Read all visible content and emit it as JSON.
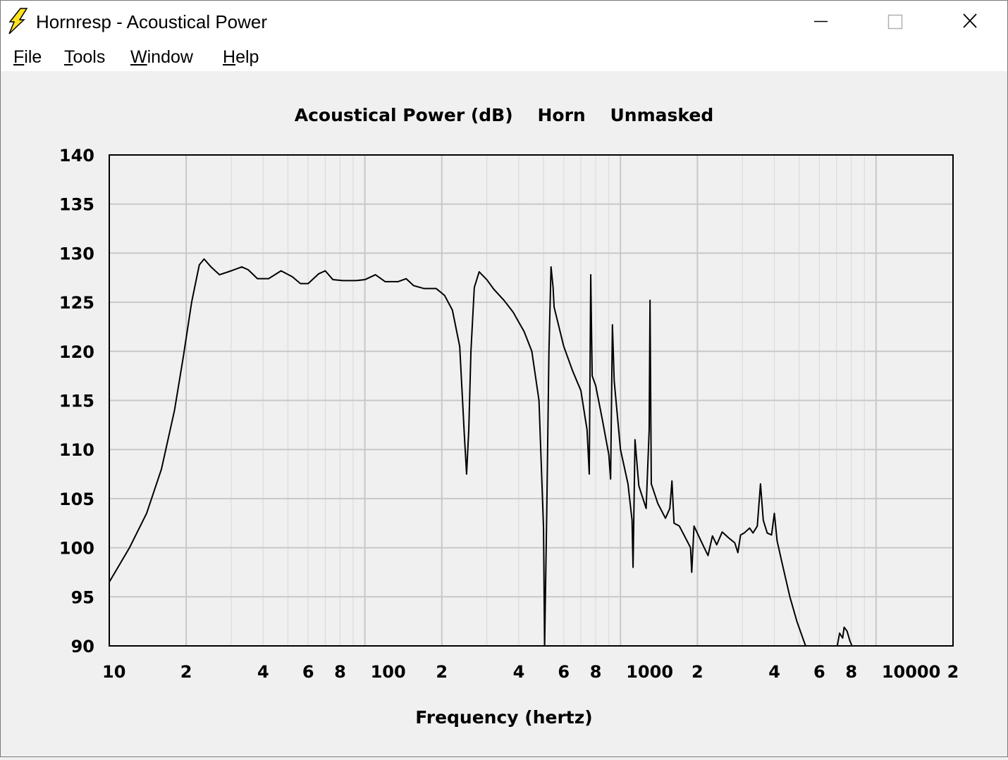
{
  "window": {
    "title": "Hornresp - Acoustical Power",
    "icon": "lightning-bolt-icon",
    "controls": [
      "minimize-icon",
      "maximize-icon",
      "close-icon"
    ]
  },
  "menu": [
    {
      "label": "File",
      "mnemonic": "F",
      "rest": "ile"
    },
    {
      "label": "Tools",
      "mnemonic": "T",
      "rest": "ools"
    },
    {
      "label": "Window",
      "mnemonic": "W",
      "rest": "indow"
    },
    {
      "label": "Help",
      "mnemonic": "H",
      "rest": "elp"
    }
  ],
  "chart_data": {
    "type": "line",
    "title": "Acoustical Power (dB)    Horn    Unmasked",
    "xlabel": "Frequency (hertz)",
    "ylabel": "",
    "xscale": "log",
    "xlim": [
      10,
      20000
    ],
    "ylim": [
      90,
      140
    ],
    "yticks": [
      90,
      95,
      100,
      105,
      110,
      115,
      120,
      125,
      130,
      135,
      140
    ],
    "xtick_labels": [
      {
        "x": 10,
        "label": "10"
      },
      {
        "x": 20,
        "label": "2"
      },
      {
        "x": 40,
        "label": "4"
      },
      {
        "x": 60,
        "label": "6"
      },
      {
        "x": 80,
        "label": "8"
      },
      {
        "x": 100,
        "label": "100"
      },
      {
        "x": 200,
        "label": "2"
      },
      {
        "x": 400,
        "label": "4"
      },
      {
        "x": 600,
        "label": "6"
      },
      {
        "x": 800,
        "label": "8"
      },
      {
        "x": 1000,
        "label": "1000"
      },
      {
        "x": 2000,
        "label": "2"
      },
      {
        "x": 4000,
        "label": "4"
      },
      {
        "x": 6000,
        "label": "6"
      },
      {
        "x": 8000,
        "label": "8"
      },
      {
        "x": 10000,
        "label": "10000"
      },
      {
        "x": 20000,
        "label": "2"
      }
    ],
    "grid": true,
    "line_color": "#000000",
    "series": [
      {
        "points": [
          [
            10,
            96.5
          ],
          [
            12,
            100
          ],
          [
            14,
            103.5
          ],
          [
            16,
            108
          ],
          [
            18,
            114
          ],
          [
            19.5,
            119.5
          ],
          [
            21,
            125
          ],
          [
            22.5,
            128.8
          ],
          [
            23.5,
            129.4
          ],
          [
            25,
            128.6
          ],
          [
            27,
            127.8
          ],
          [
            30,
            128.2
          ],
          [
            33,
            128.6
          ],
          [
            35,
            128.3
          ],
          [
            38,
            127.4
          ],
          [
            42,
            127.4
          ],
          [
            47,
            128.2
          ],
          [
            52,
            127.6
          ],
          [
            56,
            126.9
          ],
          [
            60,
            126.9
          ],
          [
            66,
            127.9
          ],
          [
            70,
            128.2
          ],
          [
            75,
            127.3
          ],
          [
            82,
            127.2
          ],
          [
            92,
            127.2
          ],
          [
            100,
            127.3
          ],
          [
            110,
            127.8
          ],
          [
            120,
            127.1
          ],
          [
            135,
            127.1
          ],
          [
            145,
            127.4
          ],
          [
            155,
            126.7
          ],
          [
            170,
            126.4
          ],
          [
            190,
            126.4
          ],
          [
            205,
            125.7
          ],
          [
            220,
            124.2
          ],
          [
            235,
            120.5
          ],
          [
            245,
            111.5
          ],
          [
            250,
            107.5
          ],
          [
            255,
            112
          ],
          [
            260,
            120
          ],
          [
            268,
            126.5
          ],
          [
            280,
            128.1
          ],
          [
            300,
            127.3
          ],
          [
            320,
            126.3
          ],
          [
            350,
            125.2
          ],
          [
            380,
            124
          ],
          [
            420,
            122
          ],
          [
            450,
            120
          ],
          [
            480,
            115
          ],
          [
            500,
            102
          ],
          [
            505,
            90
          ],
          [
            515,
            104
          ],
          [
            525,
            120
          ],
          [
            535,
            128.6
          ],
          [
            545,
            126.5
          ],
          [
            550,
            124.5
          ],
          [
            600,
            120.5
          ],
          [
            650,
            118
          ],
          [
            700,
            116
          ],
          [
            740,
            112
          ],
          [
            755,
            107.5
          ],
          [
            765,
            127.8
          ],
          [
            775,
            117.5
          ],
          [
            800,
            116.5
          ],
          [
            850,
            113
          ],
          [
            900,
            109.5
          ],
          [
            915,
            107
          ],
          [
            930,
            122.7
          ],
          [
            945,
            117
          ],
          [
            1000,
            110
          ],
          [
            1070,
            106.5
          ],
          [
            1110,
            102.8
          ],
          [
            1120,
            98
          ],
          [
            1140,
            111
          ],
          [
            1180,
            106.3
          ],
          [
            1260,
            104
          ],
          [
            1295,
            112
          ],
          [
            1305,
            125.2
          ],
          [
            1320,
            106.5
          ],
          [
            1400,
            104.5
          ],
          [
            1500,
            103
          ],
          [
            1560,
            104
          ],
          [
            1590,
            106.8
          ],
          [
            1620,
            102.5
          ],
          [
            1700,
            102.2
          ],
          [
            1780,
            101.2
          ],
          [
            1880,
            100
          ],
          [
            1900,
            97.5
          ],
          [
            1940,
            102.2
          ],
          [
            2100,
            100.3
          ],
          [
            2200,
            99.2
          ],
          [
            2290,
            101.2
          ],
          [
            2380,
            100.3
          ],
          [
            2500,
            101.6
          ],
          [
            2650,
            101
          ],
          [
            2800,
            100.5
          ],
          [
            2880,
            99.5
          ],
          [
            2950,
            101.3
          ],
          [
            3050,
            101.5
          ],
          [
            3200,
            102
          ],
          [
            3300,
            101.5
          ],
          [
            3430,
            102.2
          ],
          [
            3530,
            106.5
          ],
          [
            3620,
            102.8
          ],
          [
            3750,
            101.5
          ],
          [
            3900,
            101.3
          ],
          [
            4000,
            103.5
          ],
          [
            4100,
            100.7
          ],
          [
            4300,
            98.3
          ],
          [
            4600,
            95
          ],
          [
            4900,
            92.5
          ],
          [
            5200,
            90.6
          ],
          [
            5300,
            90
          ]
        ]
      },
      {
        "points": [
          [
            7050,
            90
          ],
          [
            7200,
            91.3
          ],
          [
            7400,
            90.8
          ],
          [
            7500,
            91.9
          ],
          [
            7700,
            91.5
          ],
          [
            7900,
            90.5
          ],
          [
            8050,
            90
          ]
        ]
      }
    ]
  }
}
